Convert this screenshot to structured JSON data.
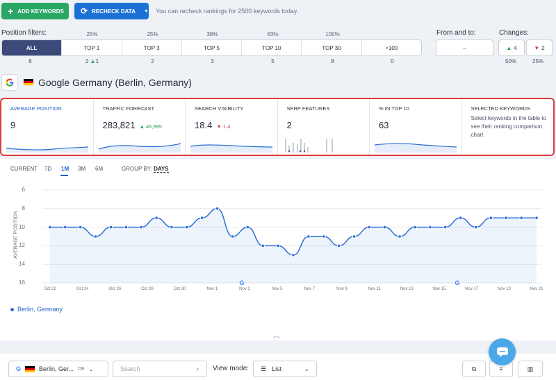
{
  "toolbar": {
    "add_keywords": "ADD KEYWORDS",
    "recheck_data": "RECHECK DATA",
    "note": "You can recheck rankings for 2500 keywords today."
  },
  "filters": {
    "label": "Position filters:",
    "items": [
      {
        "label": "ALL",
        "pct": "",
        "count": "8",
        "active": true
      },
      {
        "label": "TOP 1",
        "pct": "25%",
        "count": "2",
        "delta": "1"
      },
      {
        "label": "TOP 3",
        "pct": "25%",
        "count": "2"
      },
      {
        "label": "TOP 5",
        "pct": "38%",
        "count": "3"
      },
      {
        "label": "TOP 10",
        "pct": "63%",
        "count": "5"
      },
      {
        "label": "TOP 30",
        "pct": "100%",
        "count": "8"
      },
      {
        "label": ">100",
        "pct": "",
        "count": "0"
      }
    ],
    "from_to_label": "From and to:",
    "from_to_value": "–",
    "changes_label": "Changes:",
    "changes_up": "4",
    "changes_down": "2",
    "changes_up_pct": "50%",
    "changes_down_pct": "25%"
  },
  "search_engine": {
    "title": "Google Germany (Berlin, Germany)"
  },
  "metrics": {
    "avg_position": {
      "label": "AVERAGE POSITION",
      "value": "9"
    },
    "traffic": {
      "label": "TRAFFIC FORECAST",
      "value": "283,821",
      "change": "46,995"
    },
    "visibility": {
      "label": "SEARCH VISIBILITY",
      "value": "18.4",
      "change": "1.4"
    },
    "serp": {
      "label": "SERP FEATURES",
      "value": "2"
    },
    "top10": {
      "label": "% IN TOP 10",
      "value": "63"
    },
    "selected": {
      "label": "SELECTED KEYWORDS",
      "note": "Select keywords in the table to see their ranking comparison chart"
    }
  },
  "chart_controls": {
    "ranges": [
      "CURRENT",
      "7D",
      "1M",
      "3M",
      "6M"
    ],
    "active_range": "1M",
    "group_by_label": "GROUP BY:",
    "group_by_value": "DAYS"
  },
  "chart_data": {
    "type": "line",
    "ylabel": "AVERAGE POSITION",
    "y_ticks": [
      "6",
      "8",
      "10",
      "12",
      "14",
      "16"
    ],
    "ylim": [
      16,
      6
    ],
    "y_inverted": true,
    "x_tick_labels": [
      "Oct 22",
      "Oct 24",
      "Oct 26",
      "Oct 28",
      "Oct 30",
      "Nov 1",
      "Nov 3",
      "Nov 5",
      "Nov 7",
      "Nov 9",
      "Nov 11",
      "Nov 13",
      "Nov 15",
      "Nov 17",
      "Nov 19",
      "Nov 21"
    ],
    "series": [
      {
        "name": "Berlin, Germany",
        "color": "#2a6fd6",
        "values": [
          10,
          10,
          10,
          11,
          10,
          10,
          10,
          9,
          10,
          10,
          9,
          8,
          11,
          10,
          12,
          12,
          13,
          11,
          11,
          12,
          11,
          10,
          10,
          11,
          10,
          10,
          10,
          9,
          10,
          9,
          9,
          9,
          9
        ]
      }
    ],
    "grid": true
  },
  "legend": {
    "label": "Berlin, Germany"
  },
  "bottom": {
    "engine_label": "Berlin, Ger...",
    "engine_code": "DE",
    "search_placeholder": "Search",
    "view_mode_label": "View mode:",
    "view_mode_value": "List"
  },
  "colors": {
    "accent": "#1c72d4",
    "green": "#2aa764",
    "highlight_border": "#e03a3a",
    "line": "#2a6fd6"
  }
}
